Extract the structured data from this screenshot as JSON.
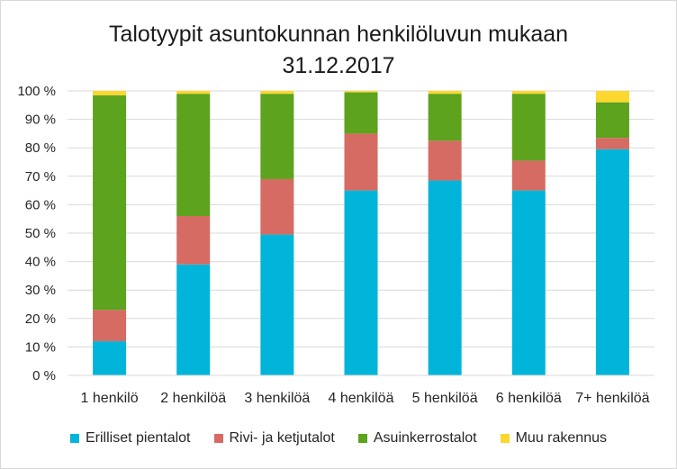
{
  "chart_data": {
    "type": "bar",
    "stacked": true,
    "percent": true,
    "title_line1": "Talotyypit asuntokunnan henkilöluvun mukaan",
    "title_line2": "31.12.2017",
    "categories": [
      "1 henkilö",
      "2 henkilöä",
      "3 henkilöä",
      "4 henkilöä",
      "5 henkilöä",
      "6 henkilöä",
      "7+ henkilöä"
    ],
    "y_ticks": [
      "0 %",
      "10 %",
      "20 %",
      "30 %",
      "40 %",
      "50 %",
      "60 %",
      "70 %",
      "80 %",
      "90 %",
      "100 %"
    ],
    "ylim": [
      0,
      100
    ],
    "legend_position": "bottom",
    "series": [
      {
        "name": "Erilliset pientalot",
        "color": "#00b5d9",
        "values": [
          12,
          39,
          49.5,
          65,
          68.5,
          65,
          79.5
        ]
      },
      {
        "name": "Rivi- ja ketjutalot",
        "color": "#d56b63",
        "values": [
          11,
          17,
          19.5,
          20,
          14,
          10.5,
          4
        ]
      },
      {
        "name": "Asuinkerrostalot",
        "color": "#5da31d",
        "values": [
          75.5,
          43,
          30,
          14.5,
          16.5,
          23.5,
          12.5
        ]
      },
      {
        "name": "Muu rakennus",
        "color": "#fcd72d",
        "values": [
          1.5,
          1,
          1,
          0.5,
          1,
          1,
          4
        ]
      }
    ]
  }
}
